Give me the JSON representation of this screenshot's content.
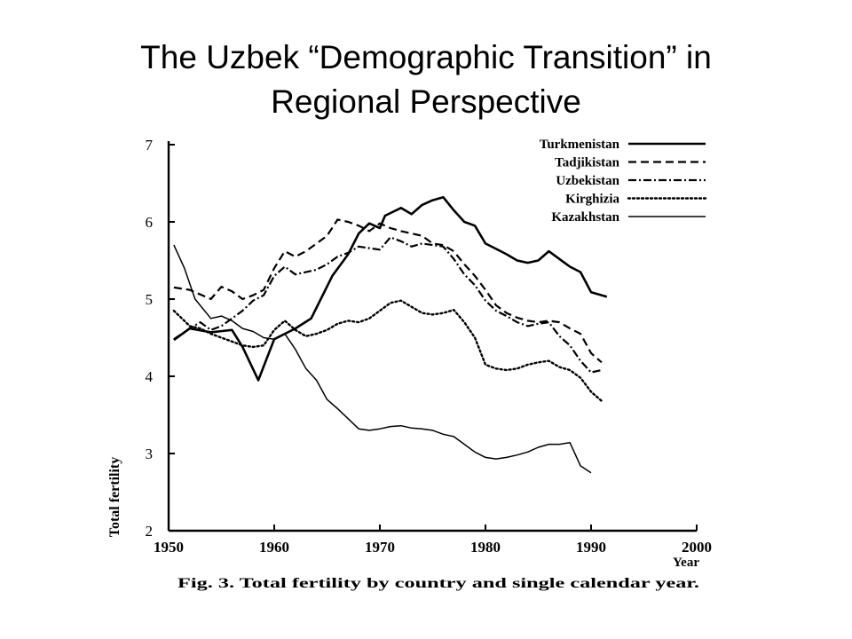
{
  "slide": {
    "title_line1": "The Uzbek “Demographic Transition” in",
    "title_line2": "Regional Perspective"
  },
  "chart_data": {
    "type": "line",
    "xlabel": "Year",
    "ylabel": "Total fertility",
    "xlim": [
      1950,
      2000
    ],
    "ylim": [
      2,
      7
    ],
    "xticks": [
      "1950",
      "1960",
      "1970",
      "1980",
      "1990",
      "2000"
    ],
    "yticks": [
      "2",
      "3",
      "4",
      "5",
      "6",
      "7"
    ],
    "legend_position": "top-right",
    "caption": "Fig. 3. Total fertility by country and single calendar year.",
    "series": [
      {
        "name": "Turkmenistan",
        "dash": "",
        "width": 2.6,
        "points": [
          [
            1950.5,
            4.47
          ],
          [
            1952,
            4.62
          ],
          [
            1954,
            4.57
          ],
          [
            1956,
            4.6
          ],
          [
            1957,
            4.38
          ],
          [
            1958.5,
            3.95
          ],
          [
            1960,
            4.48
          ],
          [
            1962,
            4.62
          ],
          [
            1963.5,
            4.75
          ],
          [
            1965.5,
            5.3
          ],
          [
            1967,
            5.58
          ],
          [
            1968,
            5.85
          ],
          [
            1969,
            5.98
          ],
          [
            1970,
            5.92
          ],
          [
            1970.5,
            6.08
          ],
          [
            1972,
            6.18
          ],
          [
            1973,
            6.1
          ],
          [
            1974,
            6.22
          ],
          [
            1975,
            6.28
          ],
          [
            1976,
            6.32
          ],
          [
            1977,
            6.15
          ],
          [
            1978,
            6.0
          ],
          [
            1979,
            5.95
          ],
          [
            1980,
            5.72
          ],
          [
            1981,
            5.65
          ],
          [
            1982,
            5.58
          ],
          [
            1983,
            5.5
          ],
          [
            1984,
            5.47
          ],
          [
            1985,
            5.5
          ],
          [
            1986,
            5.62
          ],
          [
            1987,
            5.52
          ],
          [
            1988,
            5.42
          ],
          [
            1989,
            5.35
          ],
          [
            1990,
            5.09
          ],
          [
            1991.5,
            5.03
          ]
        ]
      },
      {
        "name": "Tadjikistan",
        "dash": "9 5",
        "width": 2.2,
        "points": [
          [
            1950.5,
            5.15
          ],
          [
            1952,
            5.12
          ],
          [
            1954,
            5.0
          ],
          [
            1955,
            5.16
          ],
          [
            1956,
            5.1
          ],
          [
            1957,
            5.0
          ],
          [
            1958,
            5.05
          ],
          [
            1959,
            5.12
          ],
          [
            1960,
            5.4
          ],
          [
            1961,
            5.62
          ],
          [
            1962,
            5.55
          ],
          [
            1963,
            5.62
          ],
          [
            1964,
            5.72
          ],
          [
            1965,
            5.82
          ],
          [
            1966,
            6.03
          ],
          [
            1967,
            6.0
          ],
          [
            1968,
            5.95
          ],
          [
            1969,
            5.88
          ],
          [
            1970,
            5.98
          ],
          [
            1971,
            5.92
          ],
          [
            1972,
            5.88
          ],
          [
            1973,
            5.85
          ],
          [
            1974,
            5.82
          ],
          [
            1975,
            5.72
          ],
          [
            1976,
            5.7
          ],
          [
            1977,
            5.62
          ],
          [
            1978,
            5.45
          ],
          [
            1979,
            5.3
          ],
          [
            1980,
            5.12
          ],
          [
            1981,
            4.92
          ],
          [
            1982,
            4.82
          ],
          [
            1983,
            4.76
          ],
          [
            1984,
            4.72
          ],
          [
            1985,
            4.7
          ],
          [
            1986,
            4.72
          ],
          [
            1987,
            4.7
          ],
          [
            1988,
            4.62
          ],
          [
            1989,
            4.55
          ],
          [
            1990,
            4.3
          ],
          [
            1991,
            4.18
          ]
        ]
      },
      {
        "name": "Uzbekistan",
        "dash": "9 3 2 3",
        "width": 2.2,
        "points": [
          [
            1950.5,
            4.48
          ],
          [
            1952,
            4.62
          ],
          [
            1953,
            4.7
          ],
          [
            1954,
            4.6
          ],
          [
            1955,
            4.65
          ],
          [
            1956,
            4.75
          ],
          [
            1957,
            4.85
          ],
          [
            1958,
            4.98
          ],
          [
            1959,
            5.05
          ],
          [
            1960,
            5.3
          ],
          [
            1961,
            5.42
          ],
          [
            1962,
            5.32
          ],
          [
            1963,
            5.35
          ],
          [
            1964,
            5.38
          ],
          [
            1965,
            5.45
          ],
          [
            1966,
            5.55
          ],
          [
            1967,
            5.6
          ],
          [
            1968,
            5.68
          ],
          [
            1969,
            5.66
          ],
          [
            1970,
            5.64
          ],
          [
            1971,
            5.8
          ],
          [
            1972,
            5.75
          ],
          [
            1973,
            5.68
          ],
          [
            1974,
            5.72
          ],
          [
            1975,
            5.7
          ],
          [
            1976,
            5.68
          ],
          [
            1977,
            5.52
          ],
          [
            1978,
            5.32
          ],
          [
            1979,
            5.18
          ],
          [
            1980,
            4.98
          ],
          [
            1981,
            4.85
          ],
          [
            1982,
            4.78
          ],
          [
            1983,
            4.7
          ],
          [
            1984,
            4.65
          ],
          [
            1985,
            4.68
          ],
          [
            1986,
            4.7
          ],
          [
            1987,
            4.52
          ],
          [
            1988,
            4.4
          ],
          [
            1989,
            4.2
          ],
          [
            1990,
            4.05
          ],
          [
            1991,
            4.08
          ]
        ]
      },
      {
        "name": "Kirghizia",
        "dash": "2 3",
        "width": 2.4,
        "points": [
          [
            1950.5,
            4.85
          ],
          [
            1952,
            4.65
          ],
          [
            1953,
            4.62
          ],
          [
            1954,
            4.55
          ],
          [
            1955,
            4.5
          ],
          [
            1956,
            4.45
          ],
          [
            1957,
            4.4
          ],
          [
            1958,
            4.38
          ],
          [
            1959,
            4.4
          ],
          [
            1960,
            4.6
          ],
          [
            1961,
            4.72
          ],
          [
            1962,
            4.6
          ],
          [
            1963,
            4.52
          ],
          [
            1964,
            4.55
          ],
          [
            1965,
            4.6
          ],
          [
            1966,
            4.68
          ],
          [
            1967,
            4.72
          ],
          [
            1968,
            4.7
          ],
          [
            1969,
            4.75
          ],
          [
            1970,
            4.85
          ],
          [
            1971,
            4.95
          ],
          [
            1972,
            4.98
          ],
          [
            1973,
            4.9
          ],
          [
            1974,
            4.82
          ],
          [
            1975,
            4.8
          ],
          [
            1976,
            4.82
          ],
          [
            1977,
            4.86
          ],
          [
            1978,
            4.7
          ],
          [
            1979,
            4.5
          ],
          [
            1980,
            4.15
          ],
          [
            1981,
            4.1
          ],
          [
            1982,
            4.08
          ],
          [
            1983,
            4.1
          ],
          [
            1984,
            4.15
          ],
          [
            1985,
            4.18
          ],
          [
            1986,
            4.2
          ],
          [
            1987,
            4.12
          ],
          [
            1988,
            4.08
          ],
          [
            1989,
            3.98
          ],
          [
            1990,
            3.8
          ],
          [
            1991,
            3.68
          ]
        ]
      },
      {
        "name": "Kazakhstan",
        "dash": "",
        "width": 1.5,
        "points": [
          [
            1950.5,
            5.7
          ],
          [
            1951.5,
            5.4
          ],
          [
            1952.5,
            5.0
          ],
          [
            1954,
            4.75
          ],
          [
            1955,
            4.78
          ],
          [
            1956,
            4.72
          ],
          [
            1957,
            4.62
          ],
          [
            1958,
            4.58
          ],
          [
            1959,
            4.5
          ],
          [
            1960,
            4.48
          ],
          [
            1961,
            4.55
          ],
          [
            1962,
            4.35
          ],
          [
            1963,
            4.1
          ],
          [
            1964,
            3.95
          ],
          [
            1965,
            3.7
          ],
          [
            1966,
            3.58
          ],
          [
            1967,
            3.45
          ],
          [
            1968,
            3.32
          ],
          [
            1969,
            3.3
          ],
          [
            1970,
            3.32
          ],
          [
            1971,
            3.35
          ],
          [
            1972,
            3.36
          ],
          [
            1973,
            3.33
          ],
          [
            1974,
            3.32
          ],
          [
            1975,
            3.3
          ],
          [
            1976,
            3.25
          ],
          [
            1977,
            3.22
          ],
          [
            1978,
            3.12
          ],
          [
            1979,
            3.02
          ],
          [
            1980,
            2.95
          ],
          [
            1981,
            2.93
          ],
          [
            1982,
            2.95
          ],
          [
            1983,
            2.98
          ],
          [
            1984,
            3.02
          ],
          [
            1985,
            3.08
          ],
          [
            1986,
            3.12
          ],
          [
            1987,
            3.12
          ],
          [
            1988,
            3.14
          ],
          [
            1989,
            2.84
          ],
          [
            1990,
            2.75
          ]
        ]
      }
    ]
  }
}
